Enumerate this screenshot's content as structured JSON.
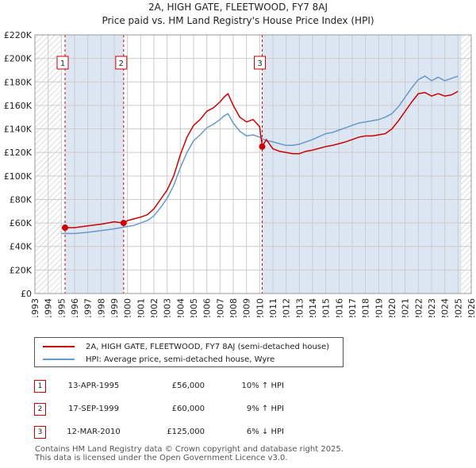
{
  "title": "2A, HIGH GATE, FLEETWOOD, FY7 8AJ",
  "subtitle": "Price paid vs. HM Land Registry's House Price Index (HPI)",
  "chart_data": {
    "type": "line",
    "title": "2A, HIGH GATE, FLEETWOOD, FY7 8AJ",
    "subtitle": "Price paid vs. HM Land Registry's House Price Index (HPI)",
    "xlim": [
      1993,
      2026
    ],
    "ylim": [
      0,
      220000
    ],
    "x_ticks": [
      1993,
      1994,
      1995,
      1996,
      1997,
      1998,
      1999,
      2000,
      2001,
      2002,
      2003,
      2004,
      2005,
      2006,
      2007,
      2008,
      2009,
      2010,
      2011,
      2012,
      2013,
      2014,
      2015,
      2016,
      2017,
      2018,
      2019,
      2020,
      2021,
      2022,
      2023,
      2024,
      2025,
      2026
    ],
    "y_ticks": [
      0,
      20000,
      40000,
      60000,
      80000,
      100000,
      120000,
      140000,
      160000,
      180000,
      200000,
      220000
    ],
    "y_tick_labels": [
      "£0",
      "£20K",
      "£40K",
      "£60K",
      "£80K",
      "£100K",
      "£120K",
      "£140K",
      "£160K",
      "£180K",
      "£200K",
      "£220K"
    ],
    "hatched_ranges": [
      [
        1993,
        1995.0
      ],
      [
        2025.25,
        2026
      ]
    ],
    "shaded_spans": [
      [
        1995.28,
        1999.71
      ],
      [
        2010.19,
        2025.25
      ]
    ],
    "series": [
      {
        "name": "2A, HIGH GATE, FLEETWOOD, FY7 8AJ (semi-detached house)",
        "color": "#cc0000",
        "x": [
          1995.28,
          1996,
          1997,
          1998,
          1999,
          1999.71,
          2000,
          2000.5,
          2001,
          2001.5,
          2002,
          2002.5,
          2003,
          2003.5,
          2004,
          2004.5,
          2005,
          2005.5,
          2006,
          2006.5,
          2007,
          2007.3,
          2007.6,
          2008,
          2008.5,
          2009,
          2009.5,
          2010,
          2010.19,
          2010.5,
          2011,
          2011.5,
          2012,
          2012.5,
          2013,
          2013.5,
          2014,
          2014.5,
          2015,
          2015.5,
          2016,
          2016.5,
          2017,
          2017.5,
          2018,
          2018.5,
          2019,
          2019.5,
          2020,
          2020.5,
          2021,
          2021.5,
          2022,
          2022.5,
          2023,
          2023.5,
          2024,
          2024.5,
          2025
        ],
        "y": [
          56000,
          56000,
          57500,
          59000,
          61000,
          60000,
          62000,
          63500,
          65000,
          67000,
          72000,
          80000,
          88000,
          100000,
          118000,
          133000,
          143000,
          148000,
          155000,
          158000,
          163000,
          167000,
          170000,
          160000,
          150000,
          146000,
          148000,
          142000,
          125000,
          131000,
          123000,
          121000,
          120000,
          119000,
          119000,
          121000,
          122000,
          123500,
          125000,
          126000,
          127500,
          129000,
          131000,
          133000,
          134000,
          134000,
          135000,
          136000,
          140000,
          147000,
          155000,
          163000,
          170000,
          171000,
          168000,
          170000,
          168000,
          169000,
          172000
        ]
      },
      {
        "name": "HPI: Average price, semi-detached house, Wyre",
        "color": "#6699cc",
        "x": [
          1995.0,
          1995.5,
          1996,
          1997,
          1998,
          1999,
          2000,
          2000.5,
          2001,
          2001.5,
          2002,
          2002.5,
          2003,
          2003.5,
          2004,
          2004.5,
          2005,
          2005.5,
          2006,
          2006.5,
          2007,
          2007.3,
          2007.6,
          2008,
          2008.5,
          2009,
          2009.5,
          2010,
          2010.5,
          2011,
          2011.5,
          2012,
          2012.5,
          2013,
          2013.5,
          2014,
          2014.5,
          2015,
          2015.5,
          2016,
          2016.5,
          2017,
          2017.5,
          2018,
          2018.5,
          2019,
          2019.5,
          2020,
          2020.5,
          2021,
          2021.5,
          2022,
          2022.5,
          2023,
          2023.5,
          2024,
          2024.5,
          2025
        ],
        "y": [
          51000,
          51000,
          51000,
          52000,
          53500,
          55000,
          57000,
          58000,
          60000,
          62000,
          66000,
          73000,
          81000,
          92000,
          107000,
          120000,
          130000,
          135000,
          141000,
          144000,
          148000,
          151000,
          153000,
          145000,
          138000,
          134000,
          135000,
          133000,
          130000,
          129000,
          127500,
          126000,
          126000,
          127000,
          129000,
          131000,
          133500,
          136000,
          137000,
          139000,
          141000,
          143000,
          145000,
          146000,
          147000,
          148000,
          150000,
          153000,
          159000,
          167000,
          175000,
          182000,
          185000,
          181000,
          184000,
          181000,
          183000,
          185000
        ]
      }
    ],
    "annotations": [
      {
        "label": "1",
        "x": 1995.28,
        "y": 56000
      },
      {
        "label": "2",
        "x": 1999.71,
        "y": 60000
      },
      {
        "label": "3",
        "x": 2010.19,
        "y": 125000
      }
    ]
  },
  "legend": {
    "items": [
      {
        "label": "2A, HIGH GATE, FLEETWOOD, FY7 8AJ (semi-detached house)",
        "color": "#cc0000"
      },
      {
        "label": "HPI: Average price, semi-detached house, Wyre",
        "color": "#6699cc"
      }
    ]
  },
  "sales": [
    {
      "marker": "1",
      "date": "13-APR-1995",
      "price": "£56,000",
      "hpi": "10% ↑ HPI"
    },
    {
      "marker": "2",
      "date": "17-SEP-1999",
      "price": "£60,000",
      "hpi": "9% ↑ HPI"
    },
    {
      "marker": "3",
      "date": "12-MAR-2010",
      "price": "£125,000",
      "hpi": "6% ↓ HPI"
    }
  ],
  "footer": {
    "line1": "Contains HM Land Registry data © Crown copyright and database right 2025.",
    "line2": "This data is licensed under the Open Government Licence v3.0."
  }
}
